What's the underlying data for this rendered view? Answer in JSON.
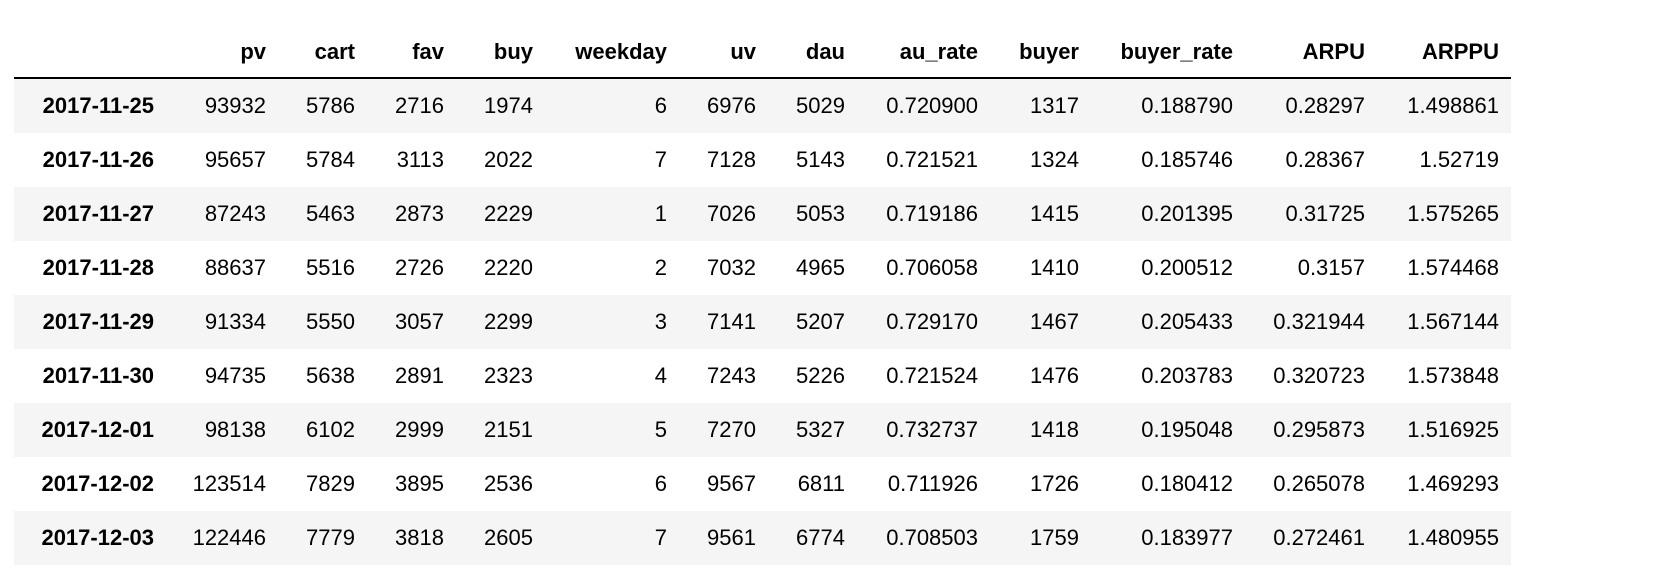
{
  "table": {
    "index_header": "",
    "columns": [
      "pv",
      "cart",
      "fav",
      "buy",
      "weekday",
      "uv",
      "dau",
      "au_rate",
      "buyer",
      "buyer_rate",
      "ARPU",
      "ARPPU"
    ],
    "rows": [
      {
        "index": "2017-11-25",
        "cells": [
          "93932",
          "5786",
          "2716",
          "1974",
          "6",
          "6976",
          "5029",
          "0.720900",
          "1317",
          "0.188790",
          "0.28297",
          "1.498861"
        ]
      },
      {
        "index": "2017-11-26",
        "cells": [
          "95657",
          "5784",
          "3113",
          "2022",
          "7",
          "7128",
          "5143",
          "0.721521",
          "1324",
          "0.185746",
          "0.28367",
          "1.52719"
        ]
      },
      {
        "index": "2017-11-27",
        "cells": [
          "87243",
          "5463",
          "2873",
          "2229",
          "1",
          "7026",
          "5053",
          "0.719186",
          "1415",
          "0.201395",
          "0.31725",
          "1.575265"
        ]
      },
      {
        "index": "2017-11-28",
        "cells": [
          "88637",
          "5516",
          "2726",
          "2220",
          "2",
          "7032",
          "4965",
          "0.706058",
          "1410",
          "0.200512",
          "0.3157",
          "1.574468"
        ]
      },
      {
        "index": "2017-11-29",
        "cells": [
          "91334",
          "5550",
          "3057",
          "2299",
          "3",
          "7141",
          "5207",
          "0.729170",
          "1467",
          "0.205433",
          "0.321944",
          "1.567144"
        ]
      },
      {
        "index": "2017-11-30",
        "cells": [
          "94735",
          "5638",
          "2891",
          "2323",
          "4",
          "7243",
          "5226",
          "0.721524",
          "1476",
          "0.203783",
          "0.320723",
          "1.573848"
        ]
      },
      {
        "index": "2017-12-01",
        "cells": [
          "98138",
          "6102",
          "2999",
          "2151",
          "5",
          "7270",
          "5327",
          "0.732737",
          "1418",
          "0.195048",
          "0.295873",
          "1.516925"
        ]
      },
      {
        "index": "2017-12-02",
        "cells": [
          "123514",
          "7829",
          "3895",
          "2536",
          "6",
          "9567",
          "6811",
          "0.711926",
          "1726",
          "0.180412",
          "0.265078",
          "1.469293"
        ]
      },
      {
        "index": "2017-12-03",
        "cells": [
          "122446",
          "7779",
          "3818",
          "2605",
          "7",
          "9561",
          "6774",
          "0.708503",
          "1759",
          "0.183977",
          "0.272461",
          "1.480955"
        ]
      }
    ]
  }
}
